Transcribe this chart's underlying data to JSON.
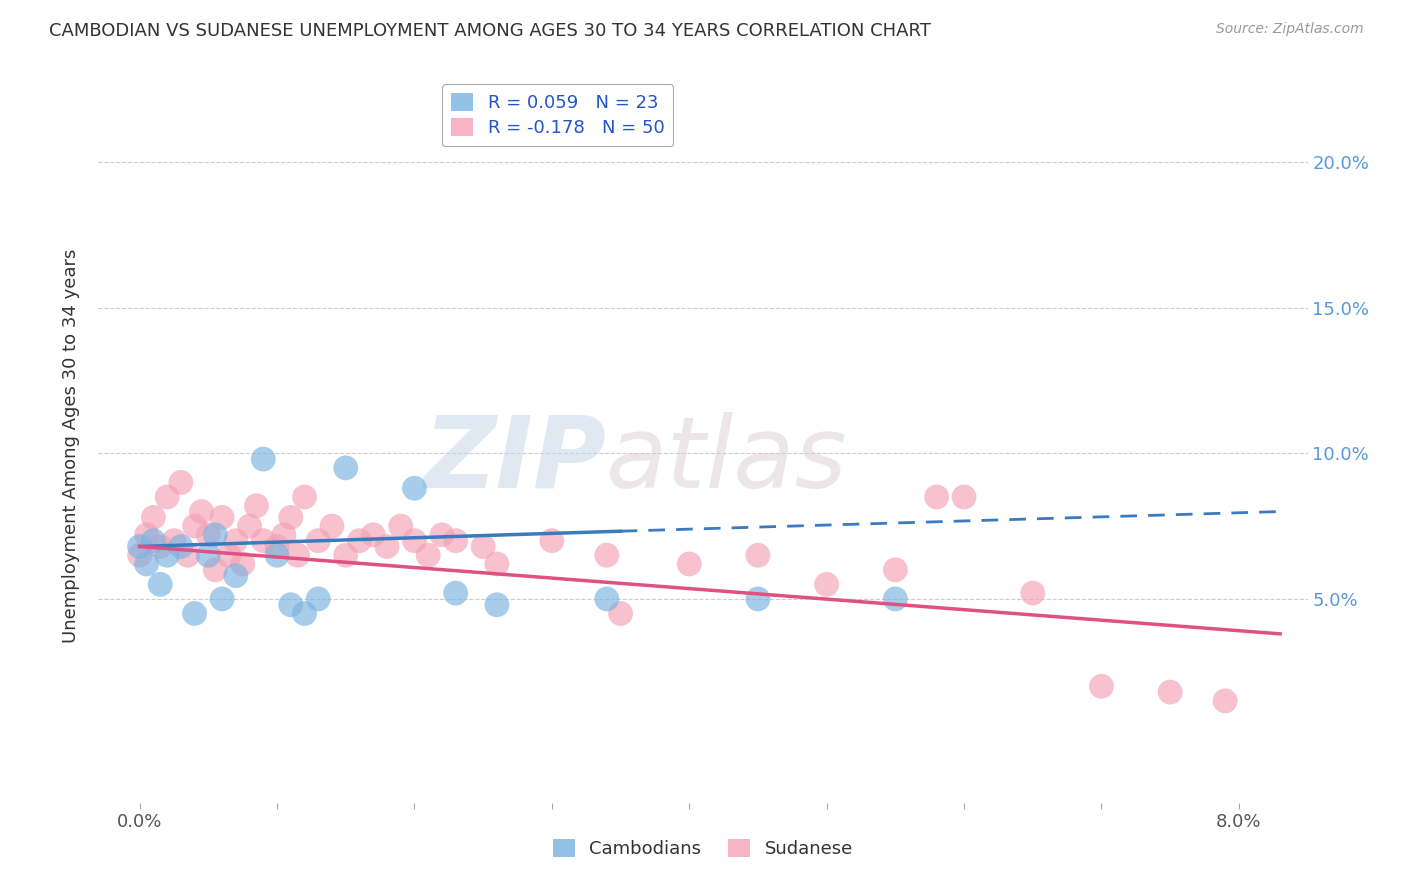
{
  "title": "CAMBODIAN VS SUDANESE UNEMPLOYMENT AMONG AGES 30 TO 34 YEARS CORRELATION CHART",
  "source": "Source: ZipAtlas.com",
  "ylabel": "Unemployment Among Ages 30 to 34 years",
  "x_tick_values": [
    0.0,
    1.0,
    2.0,
    3.0,
    4.0,
    5.0,
    6.0,
    7.0,
    8.0
  ],
  "x_end_labels": [
    "0.0%",
    "8.0%"
  ],
  "y_tick_labels": [
    "5.0%",
    "10.0%",
    "15.0%",
    "20.0%"
  ],
  "y_tick_values": [
    5.0,
    10.0,
    15.0,
    20.0
  ],
  "xlim": [
    -0.3,
    8.5
  ],
  "ylim": [
    -2.0,
    22.5
  ],
  "cambodian_R": 0.059,
  "cambodian_N": 23,
  "sudanese_R": -0.178,
  "sudanese_N": 50,
  "cambodian_color": "#7ab3e0",
  "sudanese_color": "#f4a0b5",
  "cambodian_line_color": "#3a7abf",
  "sudanese_line_color": "#e05080",
  "watermark_zip": "ZIP",
  "watermark_atlas": "atlas",
  "cambodian_x": [
    0.0,
    0.05,
    0.1,
    0.15,
    0.2,
    0.3,
    0.4,
    0.5,
    0.55,
    0.6,
    0.7,
    0.9,
    1.0,
    1.1,
    1.2,
    1.3,
    1.5,
    2.0,
    2.3,
    2.6,
    3.4,
    4.5,
    5.5
  ],
  "cambodian_y": [
    6.8,
    6.2,
    7.0,
    5.5,
    6.5,
    6.8,
    4.5,
    6.5,
    7.2,
    5.0,
    5.8,
    9.8,
    6.5,
    4.8,
    4.5,
    5.0,
    9.5,
    8.8,
    5.2,
    4.8,
    5.0,
    5.0,
    5.0
  ],
  "sudanese_x": [
    0.0,
    0.05,
    0.1,
    0.15,
    0.2,
    0.25,
    0.3,
    0.35,
    0.4,
    0.45,
    0.5,
    0.55,
    0.6,
    0.65,
    0.7,
    0.75,
    0.8,
    0.85,
    0.9,
    1.0,
    1.05,
    1.1,
    1.15,
    1.2,
    1.3,
    1.4,
    1.5,
    1.6,
    1.7,
    1.8,
    1.9,
    2.0,
    2.1,
    2.2,
    2.3,
    2.5,
    2.6,
    3.0,
    3.4,
    3.5,
    4.0,
    4.5,
    5.0,
    5.5,
    5.8,
    6.0,
    6.5,
    7.0,
    7.5,
    7.9
  ],
  "sudanese_y": [
    6.5,
    7.2,
    7.8,
    6.8,
    8.5,
    7.0,
    9.0,
    6.5,
    7.5,
    8.0,
    7.2,
    6.0,
    7.8,
    6.5,
    7.0,
    6.2,
    7.5,
    8.2,
    7.0,
    6.8,
    7.2,
    7.8,
    6.5,
    8.5,
    7.0,
    7.5,
    6.5,
    7.0,
    7.2,
    6.8,
    7.5,
    7.0,
    6.5,
    7.2,
    7.0,
    6.8,
    6.2,
    7.0,
    6.5,
    4.5,
    6.2,
    6.5,
    5.5,
    6.0,
    8.5,
    8.5,
    5.2,
    2.0,
    1.8,
    1.5
  ]
}
